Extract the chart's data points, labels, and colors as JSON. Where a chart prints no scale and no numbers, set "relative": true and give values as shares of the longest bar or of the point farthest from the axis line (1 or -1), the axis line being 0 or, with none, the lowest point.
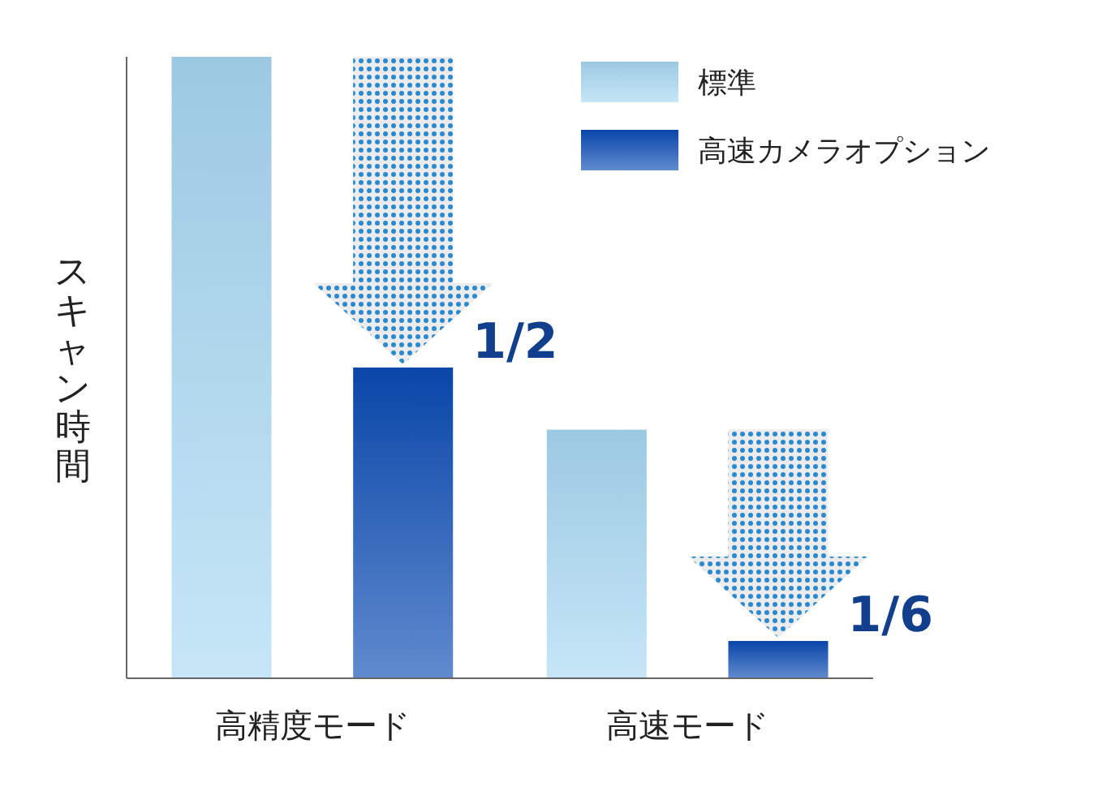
{
  "chart_data": {
    "type": "bar",
    "relative": true,
    "ylabel": "スキャン時間",
    "categories": [
      "高精度モード",
      "高速モード"
    ],
    "series": [
      {
        "name": "標準",
        "color": "#a8d8f3",
        "values": [
          1,
          0.4
        ]
      },
      {
        "name": "高速カメラオプション",
        "color": "#0a4bb4",
        "values": [
          0.5,
          0.06
        ]
      }
    ],
    "annotations": [
      "1/2",
      "1/6"
    ],
    "legend": "top right"
  }
}
